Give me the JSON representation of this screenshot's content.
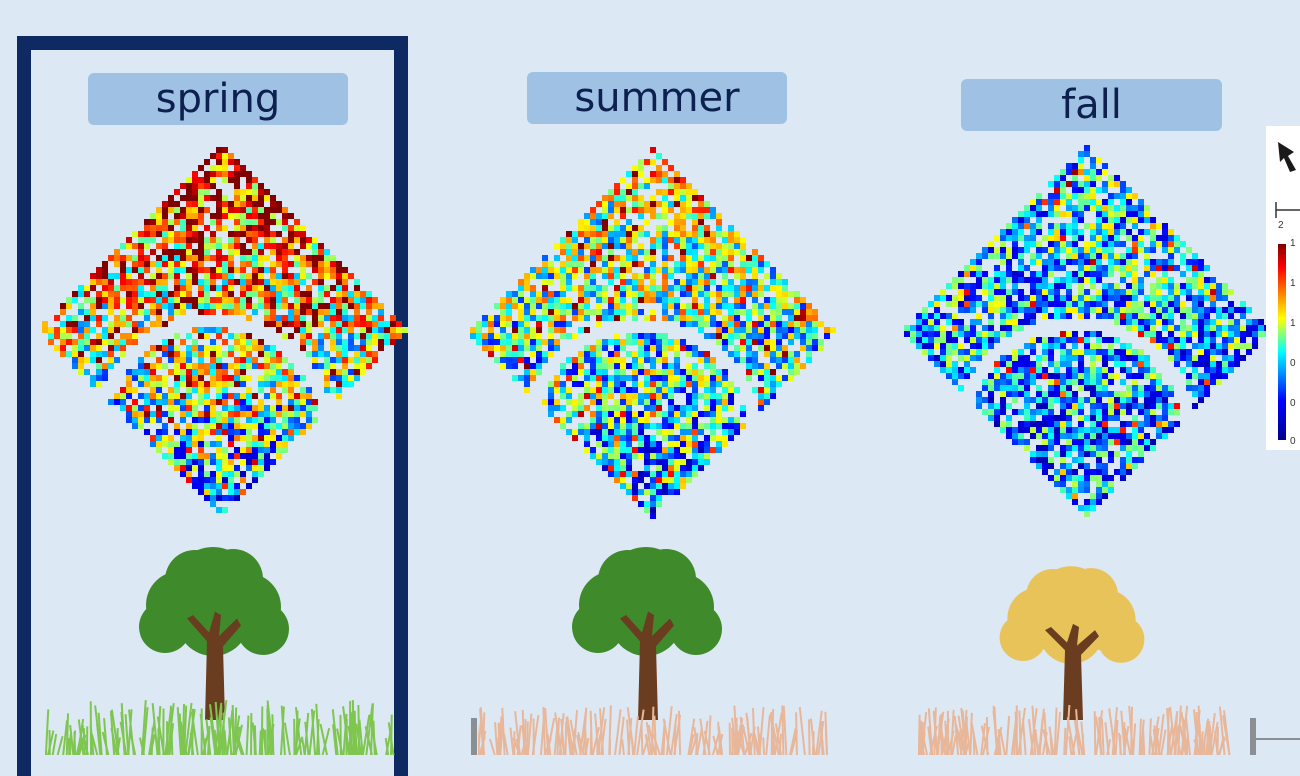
{
  "panels": [
    {
      "key": "spring",
      "label": "spring",
      "highlighted": true,
      "canopy": "#3f8a2a",
      "grass": "#7ec64f"
    },
    {
      "key": "summer",
      "label": "summer",
      "highlighted": false,
      "canopy": "#3f8a2a",
      "grass": "#e8b79a"
    },
    {
      "key": "fall",
      "label": "fall",
      "highlighted": false,
      "canopy": "#e8c35a",
      "grass": "#e8b79a"
    }
  ],
  "legend": {
    "ticks": [
      "1",
      "1",
      "1",
      "0",
      "0",
      "0"
    ],
    "scale_bar_label": "2"
  },
  "colors": {
    "background": "#dde8f5",
    "frame": "#0e2a63",
    "label_fill": "#9fc2e4",
    "label_text": "#0d2050"
  }
}
